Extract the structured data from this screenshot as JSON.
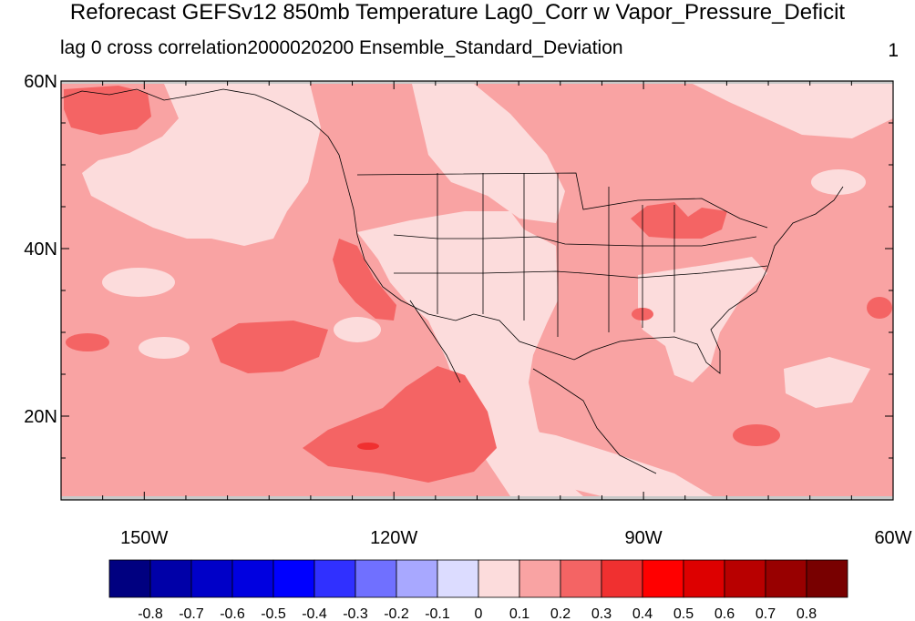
{
  "title": "Reforecast GEFSv12 850mb Temperature Lag0_Corr w Vapor_Pressure_Deficit",
  "subtitle_left": "lag 0 cross correlation2000020200 Ensemble_Standard_Deviation",
  "subtitle_right": "1",
  "map": {
    "lon_range": [
      -160,
      -60
    ],
    "lat_range": [
      10,
      60
    ],
    "lat_ticks": [
      {
        "value": 60,
        "label": "60N"
      },
      {
        "value": 40,
        "label": "40N"
      },
      {
        "value": 20,
        "label": "20N"
      }
    ],
    "lon_ticks": [
      {
        "value": -150,
        "label": "150W"
      },
      {
        "value": -120,
        "label": "120W"
      },
      {
        "value": -90,
        "label": "90W"
      },
      {
        "value": -60,
        "label": "60W"
      }
    ],
    "dominant_value_range": "0.1 to 0.2",
    "colors": {
      "level_0_0p1": "#fcdcdc",
      "level_0p1_0p2": "#f9a3a3",
      "level_0p2_0p3": "#f46464",
      "level_0p3_0p4": "#f03030",
      "missing": "#c8c8c8"
    }
  },
  "colorbar": {
    "labels": [
      "-0.8",
      "-0.7",
      "-0.6",
      "-0.5",
      "-0.4",
      "-0.3",
      "-0.2",
      "-0.1",
      "0",
      "0.1",
      "0.2",
      "0.3",
      "0.4",
      "0.5",
      "0.6",
      "0.7",
      "0.8"
    ],
    "colors": [
      "#000080",
      "#0000a8",
      "#0000c8",
      "#0000e0",
      "#0000ff",
      "#3030ff",
      "#7070ff",
      "#a8a8ff",
      "#dcdcff",
      "#fcdcdc",
      "#f9a3a3",
      "#f46464",
      "#f03030",
      "#ff0000",
      "#dd0000",
      "#b80000",
      "#980000",
      "#780000"
    ]
  }
}
